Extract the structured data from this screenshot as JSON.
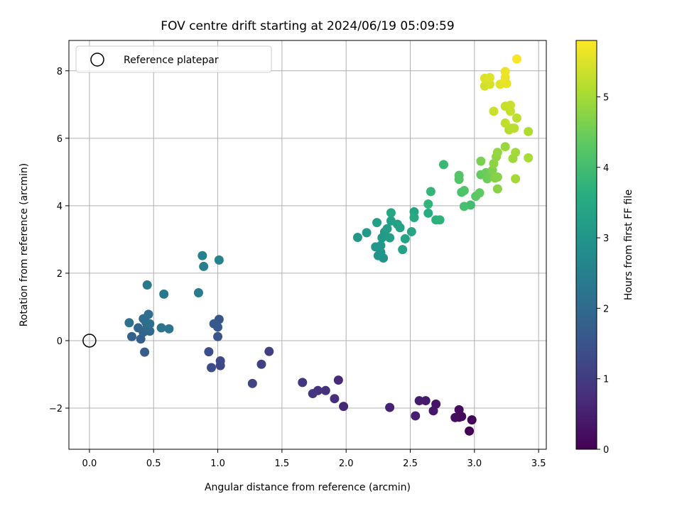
{
  "chart_data": {
    "type": "scatter",
    "title": "FOV centre drift starting at 2024/06/19 05:09:59",
    "xlabel": "Angular distance from reference (arcmin)",
    "ylabel": "Rotation from reference (arcmin)",
    "xlim": [
      -0.16,
      3.56
    ],
    "ylim": [
      -3.22,
      8.9
    ],
    "xticks": [
      "0.0",
      "0.5",
      "1.0",
      "1.5",
      "2.0",
      "2.5",
      "3.0",
      "3.5"
    ],
    "yticks": [
      "−2",
      "0",
      "2",
      "4",
      "6",
      "8"
    ],
    "grid": true,
    "legend": {
      "placement": "top-left",
      "entries": [
        {
          "label": "Reference platepar",
          "marker": "open-circle",
          "x": 0.0,
          "y": 0.0
        }
      ]
    },
    "colorbar": {
      "label": "Hours from first FF file",
      "colormap": "viridis",
      "range": [
        0,
        5.8
      ],
      "ticks": [
        "0",
        "1",
        "2",
        "3",
        "4",
        "5"
      ]
    },
    "series": [
      {
        "marker": "filled-circle",
        "points": [
          [
            2.96,
            -2.68,
            0.0
          ],
          [
            2.98,
            -2.35,
            0.05
          ],
          [
            2.88,
            -2.27,
            0.1
          ],
          [
            2.9,
            -2.25,
            0.15
          ],
          [
            2.88,
            -2.05,
            0.2
          ],
          [
            2.85,
            -2.28,
            0.22
          ],
          [
            2.7,
            -1.88,
            0.3
          ],
          [
            2.68,
            -2.08,
            0.35
          ],
          [
            2.62,
            -1.78,
            0.4
          ],
          [
            2.57,
            -1.78,
            0.45
          ],
          [
            2.54,
            -2.23,
            0.5
          ],
          [
            2.34,
            -1.98,
            0.55
          ],
          [
            1.98,
            -1.95,
            0.65
          ],
          [
            1.94,
            -1.17,
            0.7
          ],
          [
            1.91,
            -1.72,
            0.75
          ],
          [
            1.84,
            -1.48,
            0.8
          ],
          [
            1.78,
            -1.48,
            0.85
          ],
          [
            1.74,
            -1.57,
            0.9
          ],
          [
            1.66,
            -1.24,
            0.95
          ],
          [
            1.4,
            -0.32,
            1.05
          ],
          [
            1.34,
            -0.7,
            1.1
          ],
          [
            1.27,
            -1.27,
            1.15
          ],
          [
            1.02,
            -0.74,
            1.25
          ],
          [
            1.02,
            -0.6,
            1.28
          ],
          [
            0.95,
            -0.8,
            1.35
          ],
          [
            0.93,
            -0.33,
            1.4
          ],
          [
            1.0,
            0.12,
            1.5
          ],
          [
            1.01,
            0.63,
            1.55
          ],
          [
            1.0,
            0.4,
            1.6
          ],
          [
            0.97,
            0.5,
            1.62
          ],
          [
            0.43,
            -0.34,
            1.7
          ],
          [
            0.4,
            0.05,
            1.75
          ],
          [
            0.33,
            0.12,
            1.78
          ],
          [
            0.38,
            0.38,
            1.85
          ],
          [
            0.42,
            0.25,
            1.9
          ],
          [
            0.47,
            0.28,
            1.95
          ],
          [
            0.45,
            0.4,
            2.0
          ],
          [
            0.44,
            0.55,
            2.02
          ],
          [
            0.42,
            0.65,
            2.05
          ],
          [
            0.47,
            0.5,
            2.08
          ],
          [
            0.46,
            0.78,
            2.1
          ],
          [
            0.31,
            0.53,
            2.15
          ],
          [
            0.56,
            0.38,
            2.2
          ],
          [
            0.62,
            0.35,
            2.25
          ],
          [
            0.45,
            1.65,
            2.3
          ],
          [
            0.58,
            1.38,
            2.35
          ],
          [
            0.85,
            1.42,
            2.4
          ],
          [
            0.89,
            2.2,
            2.45
          ],
          [
            0.88,
            2.52,
            2.5
          ],
          [
            1.01,
            2.39,
            2.55
          ],
          [
            2.29,
            2.45,
            2.95
          ],
          [
            2.25,
            2.52,
            2.98
          ],
          [
            2.27,
            2.62,
            3.0
          ],
          [
            2.23,
            2.78,
            3.02
          ],
          [
            2.27,
            2.82,
            3.05
          ],
          [
            2.09,
            3.06,
            3.08
          ],
          [
            2.16,
            3.2,
            3.1
          ],
          [
            2.28,
            3.05,
            3.12
          ],
          [
            2.3,
            3.22,
            3.15
          ],
          [
            2.32,
            3.32,
            3.18
          ],
          [
            2.34,
            3.05,
            3.2
          ],
          [
            2.24,
            3.5,
            3.22
          ],
          [
            2.35,
            3.55,
            3.25
          ],
          [
            2.4,
            3.45,
            3.28
          ],
          [
            2.42,
            3.35,
            3.3
          ],
          [
            2.44,
            2.7,
            3.32
          ],
          [
            2.46,
            3.02,
            3.35
          ],
          [
            2.51,
            3.23,
            3.38
          ],
          [
            2.53,
            3.82,
            3.4
          ],
          [
            2.35,
            3.79,
            3.45
          ],
          [
            2.53,
            3.65,
            3.5
          ],
          [
            2.64,
            3.78,
            3.6
          ],
          [
            2.7,
            3.58,
            3.65
          ],
          [
            2.73,
            3.58,
            3.7
          ],
          [
            2.64,
            4.05,
            3.75
          ],
          [
            2.66,
            4.42,
            3.8
          ],
          [
            2.76,
            5.22,
            3.9
          ],
          [
            2.97,
            4.02,
            4.0
          ],
          [
            2.92,
            3.98,
            4.05
          ],
          [
            2.9,
            4.4,
            4.1
          ],
          [
            2.92,
            4.45,
            4.15
          ],
          [
            2.88,
            4.78,
            4.2
          ],
          [
            2.88,
            4.9,
            4.22
          ],
          [
            3.01,
            4.28,
            4.3
          ],
          [
            3.04,
            4.38,
            4.35
          ],
          [
            3.05,
            4.92,
            4.4
          ],
          [
            3.09,
            4.98,
            4.45
          ],
          [
            3.1,
            4.8,
            4.5
          ],
          [
            3.13,
            4.92,
            4.55
          ],
          [
            3.05,
            5.32,
            4.6
          ],
          [
            3.14,
            5.05,
            4.65
          ],
          [
            3.16,
            4.82,
            4.7
          ],
          [
            3.18,
            4.85,
            4.72
          ],
          [
            3.18,
            4.5,
            4.75
          ],
          [
            3.15,
            5.25,
            4.78
          ],
          [
            3.17,
            5.45,
            4.82
          ],
          [
            3.18,
            5.58,
            4.85
          ],
          [
            3.24,
            5.75,
            4.9
          ],
          [
            3.3,
            5.4,
            4.95
          ],
          [
            3.32,
            5.58,
            4.98
          ],
          [
            3.32,
            4.8,
            5.0
          ],
          [
            3.42,
            5.42,
            5.05
          ],
          [
            3.42,
            6.2,
            5.1
          ],
          [
            3.27,
            6.25,
            5.15
          ],
          [
            3.29,
            6.3,
            5.18
          ],
          [
            3.31,
            6.3,
            5.2
          ],
          [
            3.33,
            6.6,
            5.22
          ],
          [
            3.24,
            6.45,
            5.25
          ],
          [
            3.28,
            6.8,
            5.28
          ],
          [
            3.24,
            6.95,
            5.3
          ],
          [
            3.28,
            6.98,
            5.32
          ],
          [
            3.15,
            6.8,
            5.35
          ],
          [
            3.08,
            7.55,
            5.4
          ],
          [
            3.12,
            7.6,
            5.45
          ],
          [
            3.08,
            7.78,
            5.5
          ],
          [
            3.12,
            7.8,
            5.52
          ],
          [
            3.2,
            7.6,
            5.55
          ],
          [
            3.23,
            7.65,
            5.58
          ],
          [
            3.25,
            7.62,
            5.6
          ],
          [
            3.24,
            7.8,
            5.62
          ],
          [
            3.24,
            7.98,
            5.65
          ],
          [
            3.33,
            8.35,
            5.75
          ]
        ]
      }
    ]
  }
}
